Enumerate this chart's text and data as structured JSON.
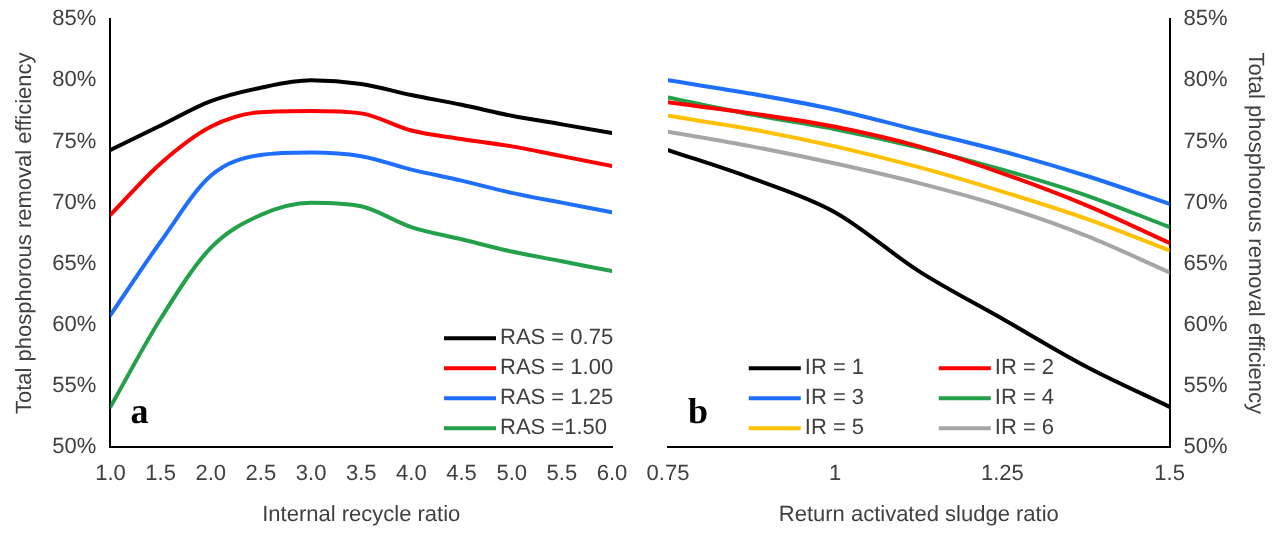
{
  "chart_data": [
    {
      "type": "line",
      "xlabel": "Internal recycle ratio",
      "ylabel": "Total phosphorous removal efficiency",
      "annotations": [
        "a"
      ],
      "legend": "bottom right",
      "grid": false,
      "marker": "none",
      "line_style": "solid",
      "x": [
        1,
        1.5,
        2,
        2.5,
        3,
        3.5,
        4,
        4.5,
        5,
        5.5,
        6
      ],
      "xlim": [
        1,
        6
      ],
      "xticks": [
        {
          "value": 1,
          "label": "1.0"
        },
        1.5,
        {
          "value": 2,
          "label": "2.0"
        },
        2.5,
        {
          "value": 3,
          "label": "3.0"
        },
        3.5,
        {
          "value": 4,
          "label": "4.0"
        },
        4.5,
        {
          "value": 5,
          "label": "5.0"
        },
        5.5,
        {
          "value": 6,
          "label": "6.0"
        }
      ],
      "ylim": [
        50,
        85
      ],
      "yticks": [
        {
          "value": 50,
          "label": "50%"
        },
        {
          "value": 55,
          "label": "55%"
        },
        {
          "value": 60,
          "label": "60%"
        },
        {
          "value": 65,
          "label": "65%"
        },
        {
          "value": 70,
          "label": "70%"
        },
        {
          "value": 75,
          "label": "75%"
        },
        {
          "value": 80,
          "label": "80%"
        },
        {
          "value": 85,
          "label": "85%"
        }
      ],
      "series": [
        {
          "name": "RAS = 0.75",
          "color": "#000000",
          "values": [
            74.3,
            76.3,
            78.3,
            79.4,
            80.0,
            79.7,
            78.8,
            78.0,
            77.1,
            76.4,
            75.7
          ]
        },
        {
          "name": "RAS = 1.00",
          "color": "#ff0000",
          "values": [
            69.0,
            73.2,
            76.2,
            77.4,
            77.5,
            77.3,
            75.9,
            75.2,
            74.6,
            73.8,
            73.0
          ]
        },
        {
          "name": "RAS = 1.25",
          "color": "#1f6fff",
          "values": [
            60.8,
            66.8,
            72.2,
            73.9,
            74.1,
            73.8,
            72.7,
            71.8,
            70.8,
            70.0,
            69.2
          ]
        },
        {
          "name": "RAS =1.50",
          "color": "#22a04a",
          "values": [
            53.3,
            60.5,
            66.3,
            69.0,
            70.0,
            69.7,
            68.0,
            67.0,
            66.0,
            65.2,
            64.4
          ]
        }
      ]
    },
    {
      "type": "line",
      "xlabel": "Return activated sludge ratio",
      "y2label": "Total phosphorous removal efficiency",
      "annotations": [
        "b"
      ],
      "legend": "bottom",
      "grid": false,
      "marker": "none",
      "line_style": "solid",
      "x": [
        0.75,
        0.875,
        1,
        1.125,
        1.25,
        1.375,
        1.5
      ],
      "xlim": [
        0.75,
        1.5
      ],
      "xticks": [
        0.75,
        1,
        1.25,
        1.5
      ],
      "y2lim": [
        50,
        85
      ],
      "y2ticks": [
        {
          "value": 50,
          "label": "50%"
        },
        {
          "value": 55,
          "label": "55%"
        },
        {
          "value": 60,
          "label": "60%"
        },
        {
          "value": 65,
          "label": "65%"
        },
        {
          "value": 70,
          "label": "70%"
        },
        {
          "value": 75,
          "label": "75%"
        },
        {
          "value": 80,
          "label": "80%"
        },
        {
          "value": 85,
          "label": "85%"
        }
      ],
      "series": [
        {
          "name": "IR = 1",
          "color": "#000000",
          "axis": "y2",
          "values": [
            74.3,
            72.0,
            69.2,
            64.4,
            60.5,
            56.6,
            53.3
          ]
        },
        {
          "name": "IR = 2",
          "color": "#ff0000",
          "axis": "y2",
          "values": [
            78.2,
            77.3,
            76.2,
            74.6,
            72.4,
            69.8,
            66.7
          ]
        },
        {
          "name": "IR = 3",
          "color": "#1f6fff",
          "axis": "y2",
          "values": [
            80.0,
            78.9,
            77.6,
            75.9,
            74.2,
            72.2,
            69.9
          ]
        },
        {
          "name": "IR = 4",
          "color": "#22a04a",
          "axis": "y2",
          "values": [
            78.6,
            77.2,
            76.0,
            74.5,
            72.7,
            70.6,
            68.0
          ]
        },
        {
          "name": "IR = 5",
          "color": "#ffc000",
          "axis": "y2",
          "values": [
            77.1,
            76.0,
            74.6,
            72.9,
            70.9,
            68.7,
            66.1
          ]
        },
        {
          "name": "IR = 6",
          "color": "#a6a6a6",
          "axis": "y2",
          "values": [
            75.8,
            74.6,
            73.2,
            71.6,
            69.7,
            67.3,
            64.3
          ]
        }
      ]
    }
  ]
}
